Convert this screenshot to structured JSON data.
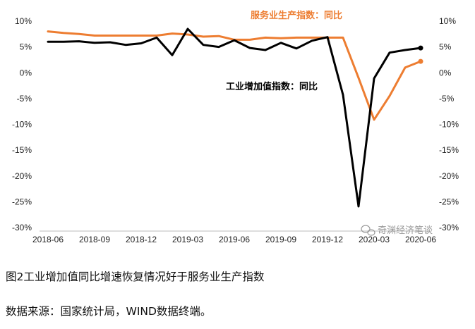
{
  "chart_data": {
    "type": "line",
    "title": "",
    "x": [
      "2018-06",
      "2018-07",
      "2018-08",
      "2018-09",
      "2018-10",
      "2018-11",
      "2018-12",
      "2019-01",
      "2019-02",
      "2019-03",
      "2019-04",
      "2019-05",
      "2019-06",
      "2019-07",
      "2019-08",
      "2019-09",
      "2019-10",
      "2019-11",
      "2019-12",
      "2020-01",
      "2020-02",
      "2020-03",
      "2020-04",
      "2020-05",
      "2020-06"
    ],
    "x_tick_labels": [
      "2018-06",
      "2018-09",
      "2018-12",
      "2019-03",
      "2019-06",
      "2019-09",
      "2019-12",
      "2020-03",
      "2020-06"
    ],
    "y_tick_labels": [
      "10%",
      "5%",
      "0%",
      "-5%",
      "-10%",
      "-15%",
      "-20%",
      "-25%",
      "-30%"
    ],
    "ylim": [
      -30,
      10
    ],
    "grid": false,
    "series": [
      {
        "name": "服务业生产指数：同比",
        "color": "#ED7D31",
        "values": [
          8.0,
          7.7,
          7.5,
          7.2,
          7.2,
          7.2,
          7.2,
          7.2,
          7.6,
          7.4,
          7.0,
          7.1,
          6.4,
          6.4,
          6.8,
          6.7,
          6.8,
          6.8,
          6.8,
          6.8,
          -1.0,
          -9.1,
          -4.5,
          1.0,
          2.2
        ]
      },
      {
        "name": "工业增加值指数：同比",
        "color": "#000000",
        "values": [
          6.0,
          6.0,
          6.1,
          5.8,
          5.9,
          5.4,
          5.7,
          6.8,
          3.4,
          8.5,
          5.4,
          5.0,
          6.3,
          4.8,
          4.4,
          5.8,
          4.7,
          6.2,
          6.9,
          -4.3,
          -25.9,
          -1.1,
          3.9,
          4.4,
          4.8
        ]
      }
    ]
  },
  "caption": {
    "title": "图2工业增加值同比增速恢复情况好于服务业生产指数",
    "source": "数据来源：国家统计局，WIND数据终端。"
  },
  "watermark": "奇渊经济笔谈"
}
